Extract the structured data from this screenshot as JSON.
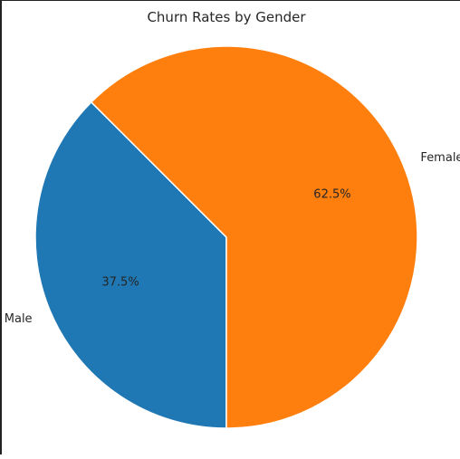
{
  "chart_data": {
    "type": "pie",
    "title": "Churn Rates by Gender",
    "categories": [
      "Male",
      "Female"
    ],
    "values": [
      37.5,
      62.5
    ],
    "percent_labels": [
      "37.5%",
      "62.5%"
    ],
    "colors": [
      "#1f77b4",
      "#ff7f0e"
    ],
    "start_angle_deg": 135,
    "direction": "counterclockwise"
  }
}
